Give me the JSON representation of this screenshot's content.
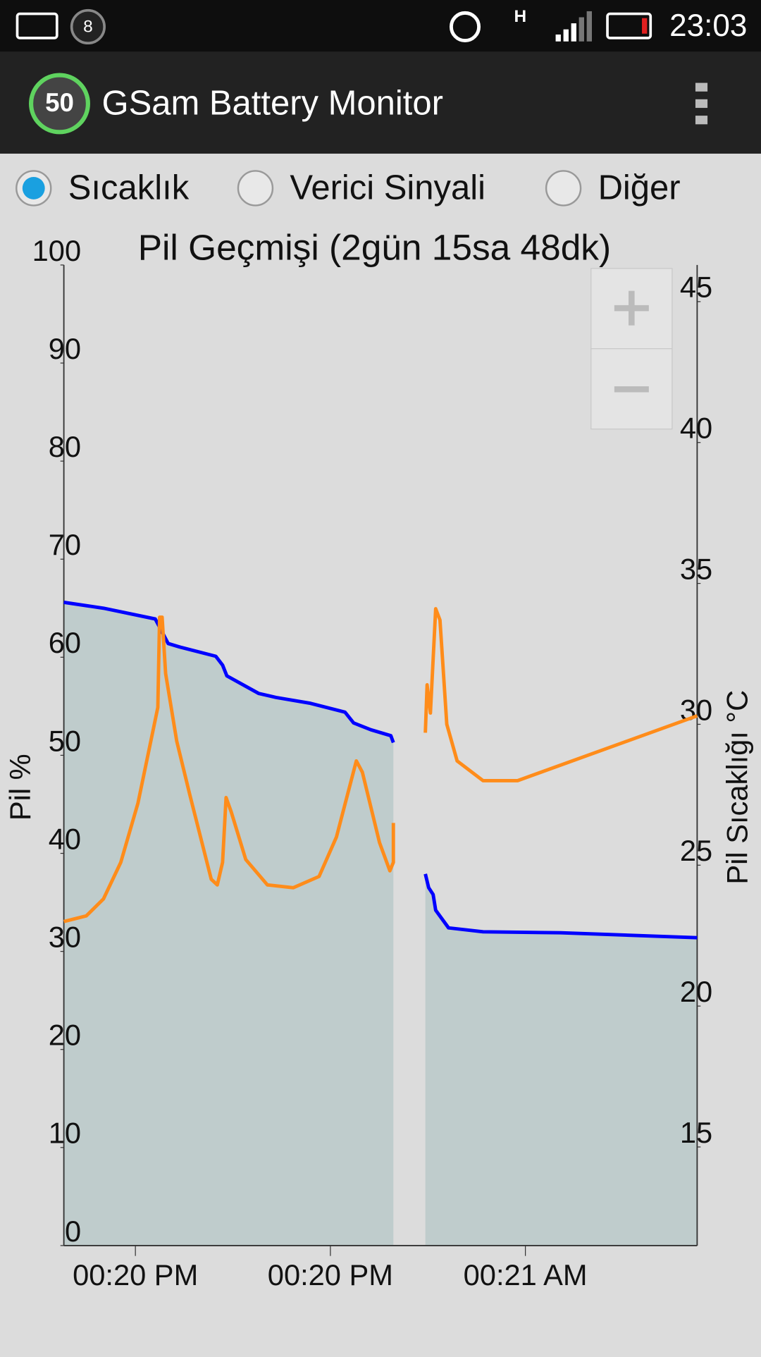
{
  "status_bar": {
    "notification_count": "8",
    "time": "23:03"
  },
  "app_bar": {
    "icon_label": "50",
    "title": "GSam Battery Monitor"
  },
  "radios": [
    {
      "label": "Sıcaklık",
      "selected": true
    },
    {
      "label": "Verici Sinyali",
      "selected": false
    },
    {
      "label": "Diğer",
      "selected": false
    }
  ],
  "chart_data": {
    "type": "line",
    "title": "Pil Geçmişi (2gün 15sa 48dk)",
    "y_label": "Pil %",
    "y2_label": "Pil Sıcaklığı °C",
    "xlim": [
      0.633,
      3.881
    ],
    "xticks": [
      {
        "value": 1,
        "label": "00:20 PM"
      },
      {
        "value": 2,
        "label": "00:20 PM"
      },
      {
        "value": 3,
        "label": "00:21 AM"
      }
    ],
    "ylim": [
      0,
      100
    ],
    "yticks": [
      0,
      10,
      20,
      30,
      40,
      50,
      60,
      70,
      80,
      90,
      100
    ],
    "y2lim": [
      11.5,
      46.3
    ],
    "y2ticks": [
      15,
      20,
      25,
      30,
      35,
      40,
      45
    ],
    "series": [
      {
        "color": "#0000ff",
        "fill": "#bfcccc",
        "x": [
          0.633,
          0.836,
          1.102,
          1.168,
          1.235,
          1.412,
          1.447,
          1.469,
          1.633,
          1.721,
          1.898,
          2.075,
          2.119,
          2.208,
          2.31,
          2.323,
          null,
          2.487,
          2.504,
          2.527,
          2.54,
          2.606,
          2.783,
          3.181,
          3.881
        ],
        "values": [
          65.6,
          65.0,
          63.9,
          61.4,
          61.0,
          60.1,
          59.2,
          58.1,
          56.3,
          55.9,
          55.3,
          54.4,
          53.3,
          52.6,
          52.0,
          51.3,
          null,
          37.9,
          36.5,
          35.8,
          34.2,
          32.4,
          32.0,
          31.9,
          31.4
        ]
      },
      {
        "color": "#ff8c1a",
        "axis": "y2",
        "x": [
          0.633,
          0.748,
          0.836,
          0.925,
          1.013,
          1.115,
          1.124,
          1.137,
          1.155,
          1.212,
          1.279,
          1.389,
          1.42,
          1.447,
          1.465,
          1.491,
          1.566,
          1.677,
          1.81,
          1.942,
          2.031,
          2.133,
          2.164,
          2.252,
          2.305,
          2.323,
          2.323,
          null,
          2.487,
          2.496,
          2.513,
          2.54,
          2.562,
          2.597,
          2.65,
          2.783,
          2.96,
          3.881
        ],
        "values": [
          23.0,
          23.2,
          23.8,
          25.1,
          27.2,
          30.6,
          33.8,
          33.8,
          31.8,
          29.4,
          27.5,
          24.5,
          24.3,
          25.1,
          27.4,
          26.9,
          25.2,
          24.3,
          24.2,
          24.6,
          26.0,
          28.7,
          28.3,
          25.8,
          24.8,
          25.1,
          26.5,
          null,
          29.7,
          31.4,
          30.4,
          34.1,
          33.7,
          30.0,
          28.7,
          28.0,
          28.0,
          30.3
        ]
      }
    ]
  }
}
